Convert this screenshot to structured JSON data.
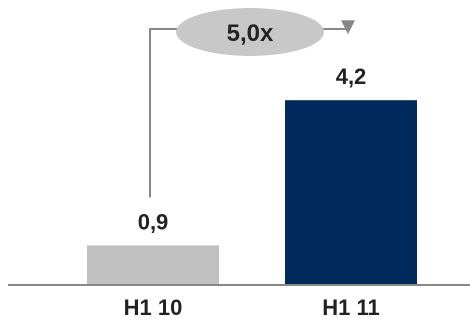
{
  "chart_data": {
    "type": "bar",
    "categories": [
      "H1 10",
      "H1 11"
    ],
    "values": [
      0.9,
      4.2
    ],
    "value_labels": [
      "0,9",
      "4,2"
    ],
    "annotation": "5,0x",
    "ylim": [
      0,
      6.25
    ],
    "grid": false,
    "legend": "none",
    "colors": {
      "bars": [
        "#c0c0c0",
        "#002b5c"
      ],
      "bubble": "#c8c8c8",
      "connector": "#888888",
      "axis": "#888888"
    }
  }
}
